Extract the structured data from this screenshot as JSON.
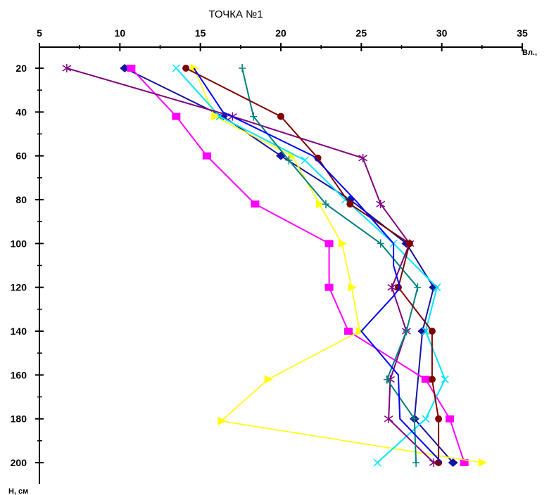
{
  "chart_data": {
    "type": "line",
    "title": "ТОЧКА №1",
    "xlabel": "Вл.,",
    "ylabel": "Н, см",
    "xlim": [
      5,
      35
    ],
    "ylim": [
      10,
      210
    ],
    "x_axis_position": "top",
    "y_axis_inverted": true,
    "grid": false,
    "legend": "none",
    "x_ticks": [
      "5",
      "10",
      "15",
      "20",
      "25",
      "30",
      "35"
    ],
    "y_ticks": [
      "20",
      "40",
      "60",
      "80",
      "100",
      "120",
      "140",
      "160",
      "180",
      "200"
    ],
    "y_tick_values": [
      20,
      40,
      60,
      80,
      100,
      120,
      140,
      160,
      180,
      200
    ],
    "x_tick_values": [
      5,
      10,
      15,
      20,
      25,
      30,
      35
    ],
    "series": [
      {
        "color": "#1414a0",
        "marker": "diamond",
        "points": [
          [
            10.3,
            20
          ],
          [
            16.4,
            42
          ],
          [
            20.0,
            60
          ],
          [
            24.3,
            80
          ],
          [
            27.8,
            100
          ],
          [
            29.5,
            120
          ],
          [
            28.8,
            140
          ],
          [
            28.3,
            180
          ],
          [
            30.7,
            200
          ]
        ]
      },
      {
        "color": "#ff00ff",
        "marker": "square",
        "points": [
          [
            10.7,
            20
          ],
          [
            13.5,
            42
          ],
          [
            15.4,
            60
          ],
          [
            18.4,
            82
          ],
          [
            23.0,
            100
          ],
          [
            23.0,
            120
          ],
          [
            24.2,
            140
          ],
          [
            29.0,
            162
          ],
          [
            30.5,
            180
          ],
          [
            31.4,
            200
          ]
        ]
      },
      {
        "color": "#ffff00",
        "marker": "triangle",
        "points": [
          [
            14.6,
            20
          ],
          [
            15.9,
            42
          ],
          [
            20.7,
            60
          ],
          [
            22.4,
            82
          ],
          [
            23.8,
            100
          ],
          [
            24.4,
            120
          ],
          [
            24.9,
            140
          ],
          [
            19.2,
            162
          ],
          [
            16.3,
            181
          ],
          [
            32.5,
            200
          ]
        ]
      },
      {
        "color": "#00e5ff",
        "marker": "x",
        "points": [
          [
            13.5,
            20
          ],
          [
            16.2,
            42
          ],
          [
            21.5,
            62
          ],
          [
            24.0,
            80
          ],
          [
            27.0,
            100
          ],
          [
            29.7,
            120
          ],
          [
            29.0,
            140
          ],
          [
            30.2,
            162
          ],
          [
            29.0,
            180
          ],
          [
            26.0,
            200
          ]
        ]
      },
      {
        "color": "#800080",
        "marker": "star",
        "points": [
          [
            6.7,
            20
          ],
          [
            17.0,
            42
          ],
          [
            25.1,
            61
          ],
          [
            26.2,
            82
          ],
          [
            28.0,
            100
          ],
          [
            26.9,
            120
          ],
          [
            27.8,
            140
          ],
          [
            26.8,
            162
          ],
          [
            26.7,
            180
          ],
          [
            29.5,
            200
          ]
        ]
      },
      {
        "color": "#008080",
        "marker": "plus",
        "points": [
          [
            17.6,
            20
          ],
          [
            18.3,
            42
          ],
          [
            20.5,
            62
          ],
          [
            22.8,
            82
          ],
          [
            26.2,
            100
          ],
          [
            28.5,
            120
          ],
          [
            27.8,
            140
          ],
          [
            26.6,
            162
          ],
          [
            28.3,
            180
          ],
          [
            28.4,
            200
          ]
        ]
      },
      {
        "color": "#800000",
        "marker": "circle",
        "points": [
          [
            14.1,
            20
          ],
          [
            20.0,
            42
          ],
          [
            22.3,
            61
          ],
          [
            24.3,
            82
          ],
          [
            28.0,
            100
          ],
          [
            27.3,
            120
          ],
          [
            29.4,
            140
          ],
          [
            29.4,
            162
          ],
          [
            29.8,
            180
          ],
          [
            29.8,
            200
          ]
        ]
      },
      {
        "color": "#0000ff",
        "marker": "none",
        "points": [
          [
            14.6,
            20
          ],
          [
            16.4,
            40
          ],
          [
            22.0,
            60
          ],
          [
            24.6,
            80
          ],
          [
            27.0,
            100
          ],
          [
            27.0,
            110
          ],
          [
            27.4,
            120
          ],
          [
            27.0,
            124
          ],
          [
            25.0,
            140
          ],
          [
            27.3,
            160
          ],
          [
            27.4,
            180
          ],
          [
            30.0,
            200
          ]
        ]
      }
    ]
  }
}
